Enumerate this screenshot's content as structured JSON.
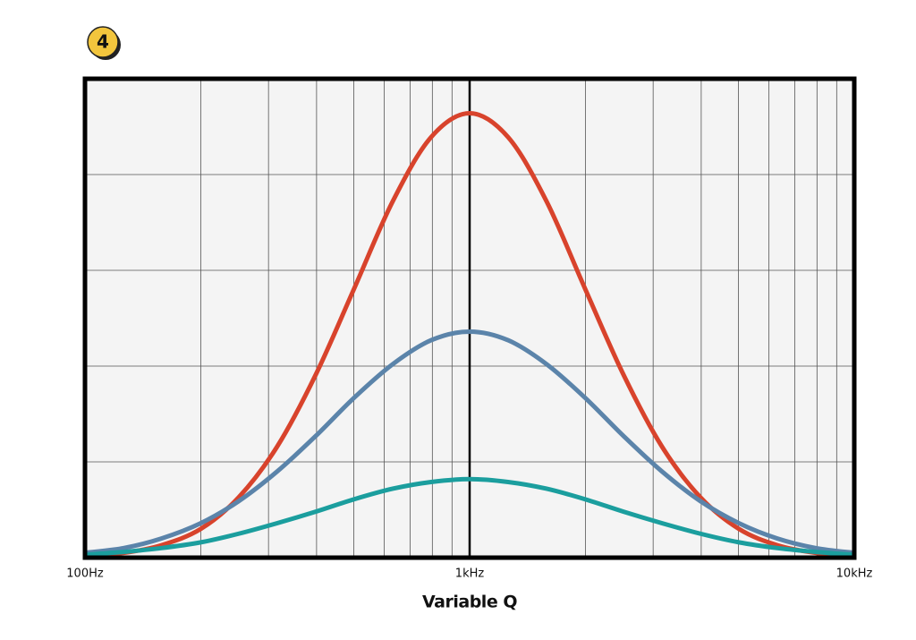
{
  "chart_data": {
    "type": "line",
    "annotation": "4",
    "xlabel": "Variable Q",
    "xscale": "log",
    "xlim": [
      100,
      10000
    ],
    "xticks": [
      {
        "value": 100,
        "label": "100Hz"
      },
      {
        "value": 1000,
        "label": "1kHz"
      },
      {
        "value": 10000,
        "label": "10kHz"
      }
    ],
    "xminor": [
      200,
      300,
      400,
      500,
      600,
      700,
      800,
      900,
      2000,
      3000,
      4000,
      5000,
      6000,
      7000,
      8000,
      9000
    ],
    "ylim": [
      0,
      5
    ],
    "ygrid": [
      1,
      2,
      3,
      4
    ],
    "grid": true,
    "x": [
      100,
      126,
      158,
      200,
      251,
      316,
      398,
      501,
      631,
      794,
      1000,
      1259,
      1585,
      1995,
      2512,
      3162,
      3981,
      5012,
      6310,
      7943,
      10000
    ],
    "series": [
      {
        "color": "#d8432c",
        "values": [
          0.02,
          0.05,
          0.13,
          0.3,
          0.63,
          1.16,
          1.91,
          2.81,
          3.72,
          4.39,
          4.64,
          4.39,
          3.72,
          2.81,
          1.91,
          1.16,
          0.63,
          0.3,
          0.13,
          0.05,
          0.02
        ]
      },
      {
        "color": "#5b84aa",
        "values": [
          0.05,
          0.1,
          0.2,
          0.36,
          0.59,
          0.9,
          1.27,
          1.67,
          2.02,
          2.27,
          2.36,
          2.27,
          2.02,
          1.67,
          1.27,
          0.9,
          0.59,
          0.36,
          0.2,
          0.1,
          0.05
        ]
      },
      {
        "color": "#1b9e9e",
        "values": [
          0.03,
          0.06,
          0.1,
          0.16,
          0.25,
          0.36,
          0.48,
          0.61,
          0.72,
          0.79,
          0.82,
          0.79,
          0.72,
          0.61,
          0.48,
          0.36,
          0.25,
          0.16,
          0.1,
          0.06,
          0.03
        ]
      }
    ]
  }
}
